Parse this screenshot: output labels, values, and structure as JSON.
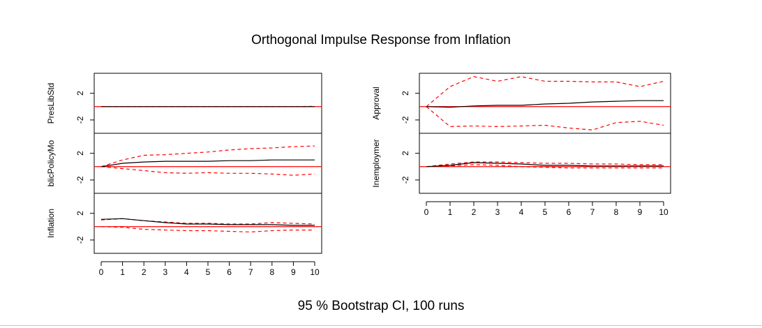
{
  "title": "Orthogonal Impulse Response from Inflation",
  "caption": "95 % Bootstrap CI,  100 runs",
  "colors": {
    "response": "#000000",
    "band": "#ff0000",
    "zero_line": "#ff0000"
  },
  "chart_data": [
    {
      "type": "line",
      "variable": "PresLibStd",
      "ylabel": "PresLibStd",
      "x": [
        0,
        1,
        2,
        3,
        4,
        5,
        6,
        7,
        8,
        9,
        10
      ],
      "yticks": [
        2,
        -2
      ],
      "ylim": [
        -4,
        5
      ],
      "response": [
        0,
        0,
        0,
        0,
        0,
        0,
        0,
        0,
        0,
        0,
        0
      ],
      "upper": [
        0,
        0,
        0,
        0,
        0,
        0,
        0,
        0,
        0,
        0,
        0.05
      ],
      "lower": [
        0,
        0,
        0,
        0,
        0,
        0,
        0,
        0,
        0,
        0,
        0
      ]
    },
    {
      "type": "line",
      "variable": "PublicPolicyMood",
      "ylabel": "blicPolicyMo",
      "x": [
        0,
        1,
        2,
        3,
        4,
        5,
        6,
        7,
        8,
        9,
        10
      ],
      "yticks": [
        2,
        -2
      ],
      "ylim": [
        -4,
        5
      ],
      "response": [
        0,
        0.5,
        0.7,
        0.8,
        0.8,
        0.8,
        0.9,
        0.9,
        1.0,
        1.0,
        1.0
      ],
      "upper": [
        0,
        1.0,
        1.7,
        1.8,
        2.0,
        2.2,
        2.5,
        2.7,
        2.8,
        3.0,
        3.1
      ],
      "lower": [
        0,
        -0.3,
        -0.6,
        -0.9,
        -1.0,
        -0.9,
        -1.0,
        -1.0,
        -1.1,
        -1.3,
        -1.1
      ]
    },
    {
      "type": "line",
      "variable": "Inflation",
      "ylabel": "Inflation",
      "x": [
        0,
        1,
        2,
        3,
        4,
        5,
        6,
        7,
        8,
        9,
        10
      ],
      "yticks": [
        2,
        -2
      ],
      "ylim": [
        -4,
        5
      ],
      "response": [
        1.1,
        1.2,
        0.9,
        0.6,
        0.4,
        0.4,
        0.3,
        0.3,
        0.3,
        0.2,
        0.2
      ],
      "upper": [
        1.0,
        1.2,
        0.9,
        0.7,
        0.5,
        0.5,
        0.4,
        0.4,
        0.6,
        0.5,
        0.4
      ],
      "lower": [
        0,
        -0.1,
        -0.4,
        -0.5,
        -0.6,
        -0.6,
        -0.7,
        -0.8,
        -0.6,
        -0.5,
        -0.5
      ]
    },
    {
      "type": "line",
      "variable": "Approval",
      "ylabel": "Approval",
      "x": [
        0,
        1,
        2,
        3,
        4,
        5,
        6,
        7,
        8,
        9,
        10
      ],
      "yticks": [
        2,
        -2
      ],
      "ylim": [
        -4,
        5
      ],
      "response": [
        0,
        -0.1,
        0.1,
        0.2,
        0.2,
        0.4,
        0.5,
        0.7,
        0.8,
        0.9,
        0.9
      ],
      "upper": [
        0,
        3.0,
        4.5,
        3.8,
        4.5,
        3.8,
        3.8,
        3.7,
        3.7,
        3.0,
        3.8
      ],
      "lower": [
        0,
        -3.0,
        -2.9,
        -3.0,
        -2.9,
        -2.8,
        -3.2,
        -3.5,
        -2.4,
        -2.2,
        -2.8
      ]
    },
    {
      "type": "line",
      "variable": "Unemployment",
      "ylabel": "Inemploymer",
      "x": [
        0,
        1,
        2,
        3,
        4,
        5,
        6,
        7,
        8,
        9,
        10
      ],
      "yticks": [
        2,
        -2
      ],
      "ylim": [
        -4,
        5
      ],
      "response": [
        0,
        0.2,
        0.6,
        0.5,
        0.4,
        0.2,
        0.2,
        0.1,
        0.1,
        0.1,
        0.1
      ],
      "upper": [
        0,
        0.4,
        0.7,
        0.7,
        0.6,
        0.5,
        0.5,
        0.4,
        0.4,
        0.3,
        0.3
      ],
      "lower": [
        0,
        0.1,
        0.3,
        0.2,
        0,
        -0.1,
        -0.2,
        -0.2,
        -0.2,
        -0.2,
        -0.2
      ]
    }
  ]
}
